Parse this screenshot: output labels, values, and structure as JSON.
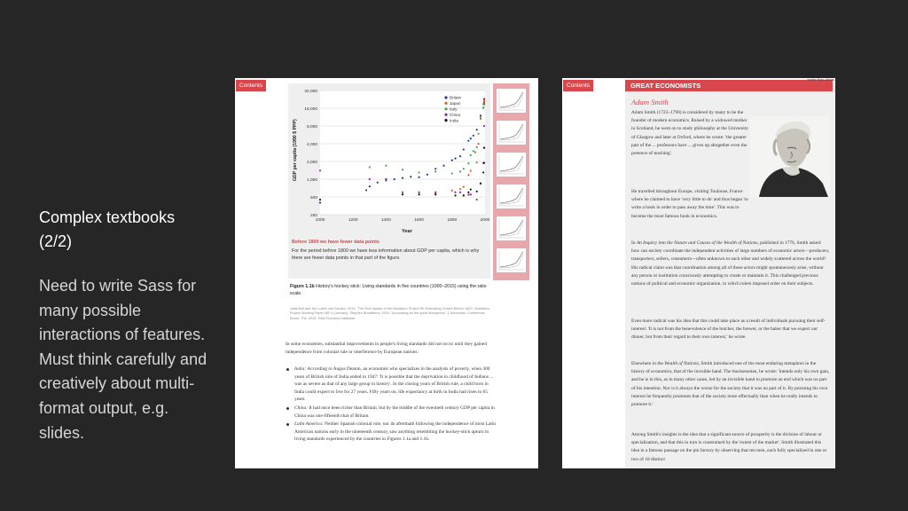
{
  "slide": {
    "title": "Complex textbooks (2/2)",
    "body": "Need to write Sass for many possible interactions of features. Must think carefully and creatively about multi-format output, e.g. slides."
  },
  "left_page": {
    "contents_tab": "Contents",
    "chart_data": {
      "type": "scatter",
      "title": "",
      "xlabel": "Year",
      "ylabel": "GDP per capita (1990 $ PPP)",
      "scale": "log",
      "xlim": [
        1000,
        2000
      ],
      "ylim": [
        250,
        32000
      ],
      "x_ticks": [
        "1000",
        "1200",
        "1400",
        "1600",
        "1800",
        "2000"
      ],
      "y_ticks": [
        "250",
        "500",
        "1,000",
        "2,000",
        "4,000",
        "8,000",
        "16,000",
        "32,000"
      ],
      "legend": [
        "Britain",
        "Japan",
        "Italy",
        "China",
        "India"
      ],
      "legend_position": "top-right",
      "colors": {
        "Britain": "#1f3f8f",
        "Japan": "#e06020",
        "Italy": "#3aa84a",
        "China": "#8a2a9a",
        "India": "#151515"
      },
      "series": [
        {
          "name": "Britain",
          "x": [
            1000,
            1280,
            1300,
            1348,
            1400,
            1450,
            1500,
            1550,
            1600,
            1650,
            1700,
            1750,
            1800,
            1820,
            1850,
            1870,
            1900,
            1913,
            1929,
            1950,
            1973,
            1990,
            2000,
            2010
          ],
          "y": [
            400,
            650,
            755,
            880,
            1000,
            1000,
            1050,
            1100,
            1080,
            1200,
            1500,
            1700,
            2100,
            2250,
            2450,
            3190,
            4490,
            4900,
            5500,
            6900,
            12000,
            16400,
            20000,
            23000
          ]
        },
        {
          "name": "Japan",
          "x": [
            1700,
            1800,
            1850,
            1870,
            1900,
            1913,
            1940,
            1950,
            1960,
            1973,
            1990,
            2000,
            2010
          ],
          "y": [
            570,
            640,
            680,
            740,
            1180,
            1390,
            2870,
            1920,
            3990,
            11400,
            18800,
            20700,
            21900
          ]
        },
        {
          "name": "Italy",
          "x": [
            1300,
            1400,
            1500,
            1600,
            1700,
            1800,
            1850,
            1870,
            1900,
            1913,
            1929,
            1950,
            1960,
            1973,
            1990,
            2000,
            2010
          ],
          "y": [
            1600,
            1700,
            1450,
            1300,
            1350,
            1250,
            1350,
            1500,
            1850,
            2560,
            3000,
            3500,
            5900,
            10600,
            16300,
            18700,
            18500
          ]
        },
        {
          "name": "China",
          "x": [
            1000,
            1300,
            1400,
            1500,
            1600,
            1700,
            1820,
            1850,
            1870,
            1900,
            1913,
            1950,
            1973,
            1990,
            2000,
            2010
          ],
          "y": [
            1400,
            1000,
            950,
            600,
            600,
            600,
            600,
            600,
            530,
            545,
            550,
            450,
            840,
            1870,
            3420,
            8000
          ]
        },
        {
          "name": "India",
          "x": [
            1000,
            1500,
            1600,
            1700,
            1820,
            1870,
            1900,
            1913,
            1950,
            1973,
            1990,
            2000,
            2010
          ],
          "y": [
            450,
            550,
            550,
            550,
            530,
            530,
            600,
            670,
            620,
            850,
            1300,
            1900,
            3400
          ]
        }
      ]
    },
    "figure_note_title": "Before 1800 we have fewer data points",
    "figure_note_body": "For the period before 1800 we have less information about GDP per capita, which is why there are fewer data points in that part of the figure.",
    "caption_label": "Figure 1.1b",
    "caption_text": "History's hockey stick: Living standards in five countries (1000–2015) using the ratio scale.",
    "source_text": "Jutta Bolt and Jan Luiten van Zanden. 2013. 'The First Update of the Maddison Project Re-Estimating Growth Before 1820'. Maddison-Project Working Paper WP-4 (January). Stephen Broadberry. 2015. 'Accounting for the great divergence'. 1 November. Conference Board. The. 2015. Total Economy Database.",
    "intro_paragraph": "In some economies, substantial improvements in people's living standards did not occur until they gained independence from colonial rule or interference by European nations:",
    "bullets": [
      {
        "label": "India:",
        "text": "According to Angus Deaton, an economist who specializes in the analysis of poverty, when 300 years of British rule of India ended in 1947: 'It is possible that the deprivation in childhood of Indians ... was as severe as that of any large group in history'. In the closing years of British rule, a child born in India could expect to live for 27 years. Fifty years on, life expectancy at birth in India had risen to 65 years."
      },
      {
        "label": "China:",
        "text": "It had once been richer than Britain, but by the middle of the twentieth century GDP per capita in China was one-fifteenth that of Britain."
      },
      {
        "label": "Latin America:",
        "text": "Neither Spanish colonial rule, nor its aftermath following the independence of most Latin American nations early in the nineteenth century, saw anything resembling the hockey-stick upturn in living standards experienced by the countries in Figures 1.1a and 1.1b."
      }
    ],
    "thumbnail_count": 6
  },
  "right_page": {
    "contents_tab": "Contents",
    "header": "GREAT ECONOMISTS",
    "top_note": "earlier than others.",
    "name": "Adam Smith",
    "para1": "Adam Smith (1723–1790) is considered by many to be the founder of modern economics. Raised by a widowed mother in Scotland, he went on to study philosophy at the University of Glasgow and later at Oxford, where he wrote: 'the greater part of the ... professors have ... given up altogether even the pretence of teaching'.",
    "para2": "He travelled throughout Europe, visiting Toulouse, France where he claimed to have 'very little to do' and thus began 'to write a book in order to pass away the time'. This was to become the most famous book in economics.",
    "para3_prefix": "In ",
    "para3_title": "An Inquiry into the Nature and Causes of the Wealth of Nations",
    "para3_rest": ", published in 1776, Smith asked: how can society coordinate the independent activities of large numbers of economic actors—producers, transporters, sellers, consumers—often unknown to each other and widely scattered across the world? His radical claim was that coordination among all of these actors might spontaneously arise, without any person or institution consciously attempting to create or maintain it. This challenged previous notions of political and economic organization, in which rulers imposed order on their subjects.",
    "para4": "Even more radical was his idea that this could take place as a result of individuals pursuing their self-interest: 'It is not from the benevolence of the butcher, the brewer, or the baker that we expect our dinner, but from their regard to their own interest,' he wrote.",
    "para5_prefix": "Elsewhere in the ",
    "para5_title": "Wealth of Nations",
    "para5_rest": ", Smith introduced one of the most enduring metaphors in the history of economics, that of the invisible hand. The businessman, he wrote: 'intends only his own gain, and he is in this, as in many other cases, led by an invisible hand to promote an end which was no part of his intention. Nor is it always the worse for the society that it was no part of it. By pursuing his own interest he frequently promotes that of the society more effectually than when he really intends to promote it.'",
    "para6": "Among Smith's insights is the idea that a significant source of prosperity is the division of labour or specialization, and that this in turn is constrained by the 'extent of the market'. Smith illustrated this idea in a famous passage on the pin factory by observing that ten men, each fully specialized in one or two of 18 distinct"
  }
}
